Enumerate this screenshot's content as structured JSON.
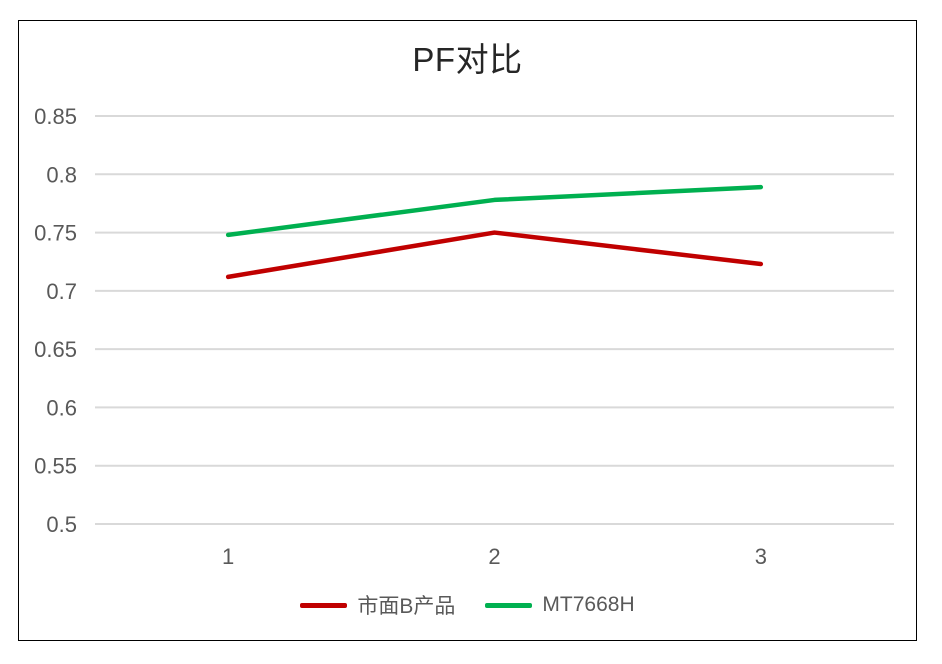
{
  "window": {
    "background_color": "#ffffff",
    "frame_border_color": "#000000"
  },
  "chart_data": {
    "type": "line",
    "title": "PF对比",
    "title_color": "#262626",
    "categories": [
      "1",
      "2",
      "3"
    ],
    "series": [
      {
        "name": "市面B产品",
        "values": [
          0.712,
          0.75,
          0.723
        ],
        "color": "#C00000"
      },
      {
        "name": "MT7668H",
        "values": [
          0.748,
          0.778,
          0.789
        ],
        "color": "#00B050"
      }
    ],
    "xlabel": "",
    "ylabel": "",
    "ylim": [
      0.5,
      0.85
    ],
    "yticks": [
      0.5,
      0.55,
      0.6,
      0.65,
      0.7,
      0.75,
      0.8,
      0.85
    ],
    "ytick_labels": [
      "0.5",
      "0.55",
      "0.6",
      "0.65",
      "0.7",
      "0.75",
      "0.8",
      "0.85"
    ],
    "grid": true,
    "gridline_color": "#D9D9D9",
    "axis_label_color": "#595959",
    "legend_position": "bottom"
  }
}
